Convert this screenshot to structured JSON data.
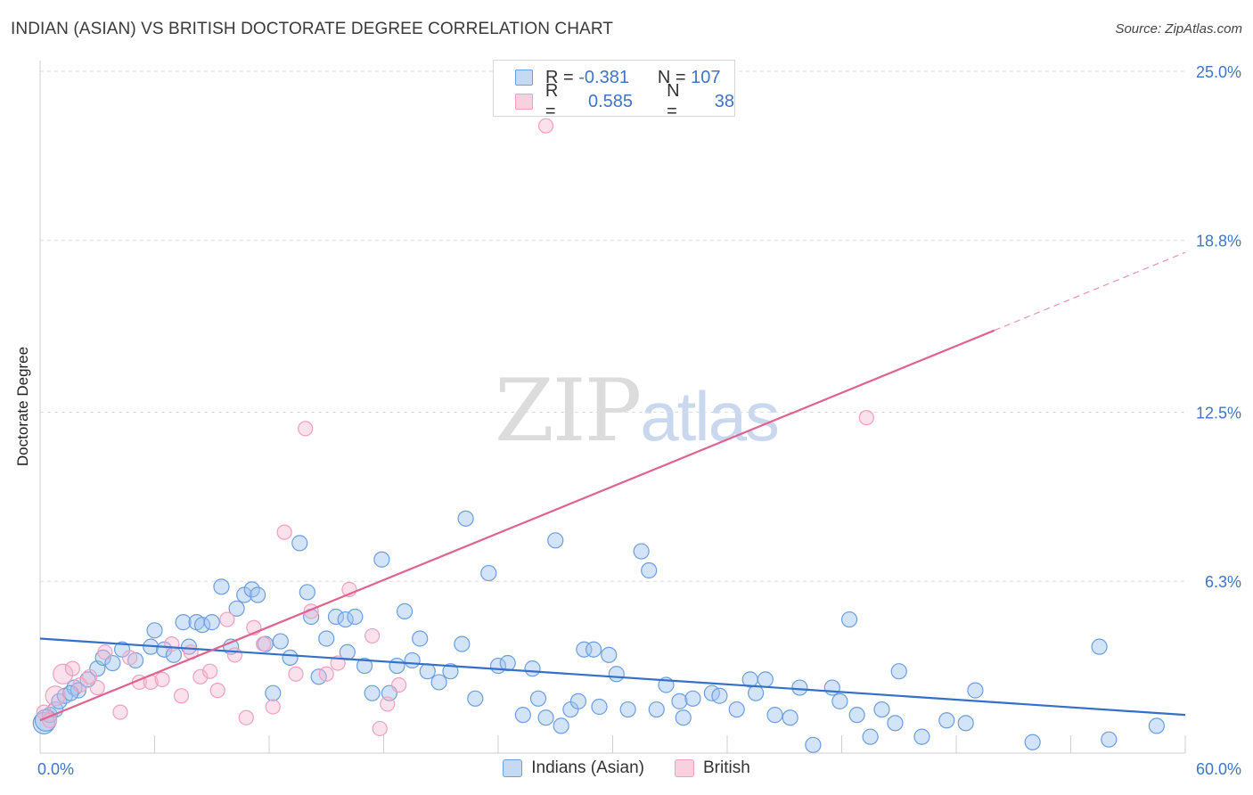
{
  "title": "INDIAN (ASIAN) VS BRITISH DOCTORATE DEGREE CORRELATION CHART",
  "source": "Source: ZipAtlas.com",
  "watermark": {
    "zip": "ZIP",
    "atlas": "atlas"
  },
  "legend_top": [
    {
      "r_label": "R =",
      "r_value": "-0.381",
      "n_label": "N =",
      "n_value": "107"
    },
    {
      "r_label": "R =",
      "r_value": "0.585",
      "n_label": "N =",
      "n_value": "38"
    }
  ],
  "chart_data": {
    "type": "scatter",
    "title": "INDIAN (ASIAN) VS BRITISH DOCTORATE DEGREE CORRELATION CHART",
    "xlabel": "",
    "ylabel": "Doctorate Degree",
    "xlim": [
      0,
      60
    ],
    "ylim": [
      0,
      25
    ],
    "x_tick_labels": [
      "0.0%",
      "60.0%"
    ],
    "y_ticks": [
      6.3,
      12.5,
      18.8,
      25.0
    ],
    "y_tick_labels": [
      "6.3%",
      "12.5%",
      "18.8%",
      "25.0%"
    ],
    "grid": true,
    "legend_position": "bottom",
    "colors": {
      "blue": "#6a9ee0",
      "pink": "#f0a0be",
      "blue_line": "#3470c9",
      "pink_line": "#e0628f",
      "tick_label": "#3f74c9"
    },
    "series": [
      {
        "name": "Indians (Asian)",
        "r": -0.381,
        "n": 107,
        "trend": {
          "x": [
            0,
            60
          ],
          "y": [
            4.2,
            1.4
          ]
        },
        "points": [
          [
            0.2,
            1.1
          ],
          [
            0.5,
            1.4
          ],
          [
            0.8,
            1.6
          ],
          [
            1.0,
            1.9
          ],
          [
            1.3,
            2.1
          ],
          [
            1.8,
            2.4
          ],
          [
            2.0,
            2.3
          ],
          [
            2.5,
            2.7
          ],
          [
            3.0,
            3.1
          ],
          [
            3.3,
            3.5
          ],
          [
            3.8,
            3.3
          ],
          [
            4.3,
            3.8
          ],
          [
            5.0,
            3.4
          ],
          [
            5.8,
            3.9
          ],
          [
            6.0,
            4.5
          ],
          [
            6.5,
            3.8
          ],
          [
            7.0,
            3.6
          ],
          [
            7.5,
            4.8
          ],
          [
            7.8,
            3.9
          ],
          [
            8.2,
            4.8
          ],
          [
            8.5,
            4.7
          ],
          [
            9.0,
            4.8
          ],
          [
            9.5,
            6.1
          ],
          [
            10.0,
            3.9
          ],
          [
            10.3,
            5.3
          ],
          [
            10.7,
            5.8
          ],
          [
            11.1,
            6.0
          ],
          [
            11.4,
            5.8
          ],
          [
            11.8,
            4.0
          ],
          [
            12.2,
            2.2
          ],
          [
            12.6,
            4.1
          ],
          [
            13.1,
            3.5
          ],
          [
            13.6,
            7.7
          ],
          [
            14.0,
            5.9
          ],
          [
            14.2,
            5.0
          ],
          [
            14.6,
            2.8
          ],
          [
            15.0,
            4.2
          ],
          [
            15.5,
            5.0
          ],
          [
            16.0,
            4.9
          ],
          [
            16.5,
            5.0
          ],
          [
            16.1,
            3.7
          ],
          [
            17.0,
            3.2
          ],
          [
            17.4,
            2.2
          ],
          [
            17.9,
            7.1
          ],
          [
            18.3,
            2.2
          ],
          [
            18.7,
            3.2
          ],
          [
            19.1,
            5.2
          ],
          [
            19.5,
            3.4
          ],
          [
            19.9,
            4.2
          ],
          [
            20.3,
            3.0
          ],
          [
            20.9,
            2.6
          ],
          [
            21.5,
            3.0
          ],
          [
            22.1,
            4.0
          ],
          [
            22.3,
            8.6
          ],
          [
            22.8,
            2.0
          ],
          [
            23.5,
            6.6
          ],
          [
            24.0,
            3.2
          ],
          [
            24.5,
            3.3
          ],
          [
            25.3,
            1.4
          ],
          [
            25.8,
            3.1
          ],
          [
            26.1,
            2.0
          ],
          [
            26.5,
            1.3
          ],
          [
            27.0,
            7.8
          ],
          [
            27.3,
            1.0
          ],
          [
            27.8,
            1.6
          ],
          [
            28.2,
            1.9
          ],
          [
            28.5,
            3.8
          ],
          [
            29.0,
            3.8
          ],
          [
            29.3,
            1.7
          ],
          [
            29.8,
            3.6
          ],
          [
            30.2,
            2.9
          ],
          [
            30.8,
            1.6
          ],
          [
            31.5,
            7.4
          ],
          [
            31.9,
            6.7
          ],
          [
            32.3,
            1.6
          ],
          [
            32.8,
            2.5
          ],
          [
            33.5,
            1.9
          ],
          [
            33.7,
            1.3
          ],
          [
            34.2,
            2.0
          ],
          [
            35.2,
            2.2
          ],
          [
            35.6,
            2.1
          ],
          [
            36.5,
            1.6
          ],
          [
            37.2,
            2.7
          ],
          [
            37.5,
            2.2
          ],
          [
            38.0,
            2.7
          ],
          [
            38.5,
            1.4
          ],
          [
            39.3,
            1.3
          ],
          [
            39.8,
            2.4
          ],
          [
            40.5,
            0.3
          ],
          [
            41.5,
            2.4
          ],
          [
            41.9,
            1.9
          ],
          [
            42.4,
            4.9
          ],
          [
            42.8,
            1.4
          ],
          [
            43.5,
            0.6
          ],
          [
            44.1,
            1.6
          ],
          [
            44.8,
            1.1
          ],
          [
            45.0,
            3.0
          ],
          [
            46.2,
            0.6
          ],
          [
            47.5,
            1.2
          ],
          [
            48.5,
            1.1
          ],
          [
            49.0,
            2.3
          ],
          [
            52.0,
            0.4
          ],
          [
            55.5,
            3.9
          ],
          [
            56.0,
            0.5
          ],
          [
            58.5,
            1.0
          ],
          [
            1.6,
            2.2
          ],
          [
            0.3,
            1.2
          ]
        ]
      },
      {
        "name": "British",
        "r": 0.585,
        "n": 38,
        "trend": {
          "x": [
            0,
            50
          ],
          "y": [
            1.2,
            15.5
          ]
        },
        "points": [
          [
            0.2,
            1.5
          ],
          [
            0.5,
            1.2
          ],
          [
            0.8,
            2.1
          ],
          [
            1.2,
            2.9
          ],
          [
            1.7,
            3.1
          ],
          [
            2.1,
            2.5
          ],
          [
            2.6,
            2.8
          ],
          [
            3.0,
            2.4
          ],
          [
            3.4,
            3.7
          ],
          [
            4.2,
            1.5
          ],
          [
            4.7,
            3.5
          ],
          [
            5.2,
            2.6
          ],
          [
            5.8,
            2.6
          ],
          [
            6.4,
            2.7
          ],
          [
            6.9,
            4.0
          ],
          [
            7.4,
            2.1
          ],
          [
            7.9,
            3.7
          ],
          [
            8.4,
            2.8
          ],
          [
            8.9,
            3.0
          ],
          [
            9.3,
            2.3
          ],
          [
            9.8,
            4.9
          ],
          [
            10.2,
            3.6
          ],
          [
            10.8,
            1.3
          ],
          [
            11.2,
            4.6
          ],
          [
            11.7,
            4.0
          ],
          [
            12.2,
            1.7
          ],
          [
            12.8,
            8.1
          ],
          [
            13.4,
            2.9
          ],
          [
            13.9,
            11.9
          ],
          [
            14.2,
            5.2
          ],
          [
            15.0,
            2.9
          ],
          [
            15.6,
            3.3
          ],
          [
            16.2,
            6.0
          ],
          [
            17.4,
            4.3
          ],
          [
            17.8,
            0.9
          ],
          [
            18.2,
            1.8
          ],
          [
            18.8,
            2.5
          ],
          [
            26.5,
            23.0
          ]
        ]
      }
    ]
  },
  "extra_points": {
    "british_high_right": [
      43.3,
      12.3
    ]
  }
}
